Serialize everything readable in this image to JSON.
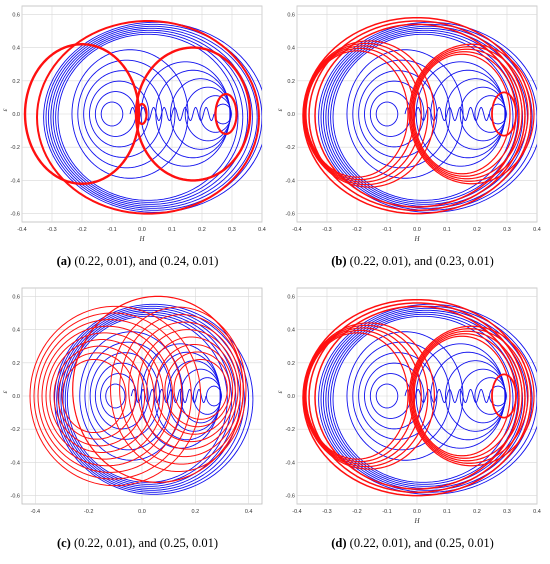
{
  "chart_data": [
    {
      "type": "line",
      "id": "a",
      "caption_letter": "(a)",
      "caption_text": "(0.22, 0.01), and (0.24, 0.01)",
      "xlabel": "H",
      "ylabel": "ε",
      "xlim": [
        -0.4,
        0.4
      ],
      "ylim": [
        -0.65,
        0.65
      ],
      "xticks": [
        "-0.4",
        "-0.3",
        "-0.2",
        "-0.1",
        "0.0",
        "0.1",
        "0.2",
        "0.3",
        "0.4"
      ],
      "yticks": [
        "-0.6",
        "-0.4",
        "-0.2",
        "0.0",
        "0.2",
        "0.4",
        "0.6"
      ],
      "grid": true,
      "series_colors": [
        "#1010ee",
        "#ff1010"
      ],
      "red_style": "tight"
    },
    {
      "type": "line",
      "id": "b",
      "caption_letter": "(b)",
      "caption_text": "(0.22, 0.01), and (0.23, 0.01)",
      "xlabel": "H",
      "ylabel": "ε",
      "xlim": [
        -0.4,
        0.4
      ],
      "ylim": [
        -0.65,
        0.65
      ],
      "xticks": [
        "-0.4",
        "-0.3",
        "-0.2",
        "-0.1",
        "0.0",
        "0.1",
        "0.2",
        "0.3",
        "0.4"
      ],
      "yticks": [
        "-0.6",
        "-0.4",
        "-0.2",
        "0.0",
        "0.2",
        "0.4",
        "0.6"
      ],
      "grid": true,
      "series_colors": [
        "#1010ee",
        "#ff1010"
      ],
      "red_style": "medium"
    },
    {
      "type": "line",
      "id": "c",
      "caption_letter": "(c)",
      "caption_text": "(0.22, 0.01), and (0.25, 0.01)",
      "xlabel": "",
      "ylabel": "ε",
      "xlim": [
        -0.45,
        0.45
      ],
      "ylim": [
        -0.65,
        0.65
      ],
      "xticks": [
        "-0.4",
        "-0.2",
        "0.0",
        "0.2",
        "0.4"
      ],
      "yticks": [
        "-0.6",
        "-0.4",
        "-0.2",
        "0.0",
        "0.2",
        "0.4",
        "0.6"
      ],
      "grid": true,
      "series_colors": [
        "#1010ee",
        "#ff1010"
      ],
      "red_style": "spread"
    },
    {
      "type": "line",
      "id": "d",
      "caption_letter": "(d)",
      "caption_text": "(0.22, 0.01), and (0.25, 0.01)",
      "xlabel": "H",
      "ylabel": "ε",
      "xlim": [
        -0.4,
        0.4
      ],
      "ylim": [
        -0.65,
        0.65
      ],
      "xticks": [
        "-0.4",
        "-0.3",
        "-0.2",
        "-0.1",
        "0.0",
        "0.1",
        "0.2",
        "0.3",
        "0.4"
      ],
      "yticks": [
        "-0.6",
        "-0.4",
        "-0.2",
        "0.0",
        "0.2",
        "0.4",
        "0.6"
      ],
      "grid": true,
      "series_colors": [
        "#1010ee",
        "#ff1010"
      ],
      "red_style": "medium"
    }
  ]
}
